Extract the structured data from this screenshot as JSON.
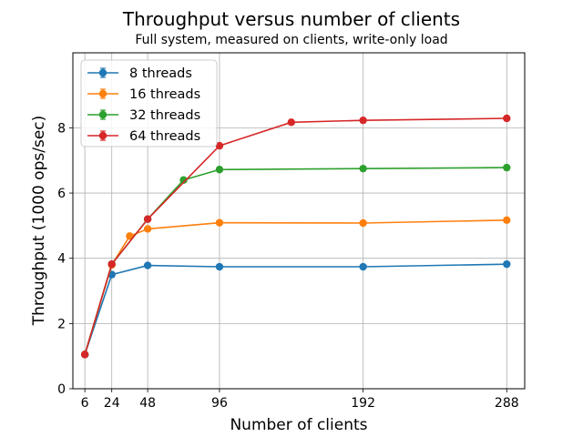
{
  "chart_data": {
    "type": "line",
    "title": "Throughput versus number of clients",
    "subtitle": "Full system, measured on clients, write-only load",
    "xlabel": "Number of clients",
    "ylabel": "Throughput (1000 ops/sec)",
    "xlim": [
      -2,
      300
    ],
    "ylim": [
      0,
      10.3
    ],
    "xticks": [
      6,
      24,
      48,
      96,
      192,
      288
    ],
    "yticks": [
      0,
      2,
      4,
      6,
      8
    ],
    "grid": true,
    "legend_position": "top-left",
    "series": [
      {
        "name": "8 threads",
        "color": "#1f77b4",
        "x": [
          6,
          24,
          48,
          96,
          192,
          288
        ],
        "y": [
          1.05,
          3.5,
          3.78,
          3.74,
          3.74,
          3.82
        ]
      },
      {
        "name": "16 threads",
        "color": "#ff7f0e",
        "x": [
          6,
          24,
          36,
          48,
          96,
          192,
          288
        ],
        "y": [
          1.05,
          3.8,
          4.68,
          4.9,
          5.09,
          5.08,
          5.17
        ]
      },
      {
        "name": "32 threads",
        "color": "#2ca02c",
        "x": [
          6,
          24,
          48,
          72,
          96,
          192,
          288
        ],
        "y": [
          1.05,
          3.82,
          5.2,
          6.4,
          6.72,
          6.75,
          6.78
        ]
      },
      {
        "name": "64 threads",
        "color": "#d62728",
        "x": [
          6,
          24,
          48,
          96,
          144,
          192,
          288
        ],
        "y": [
          1.05,
          3.82,
          5.2,
          7.45,
          8.17,
          8.23,
          8.29
        ]
      }
    ]
  }
}
